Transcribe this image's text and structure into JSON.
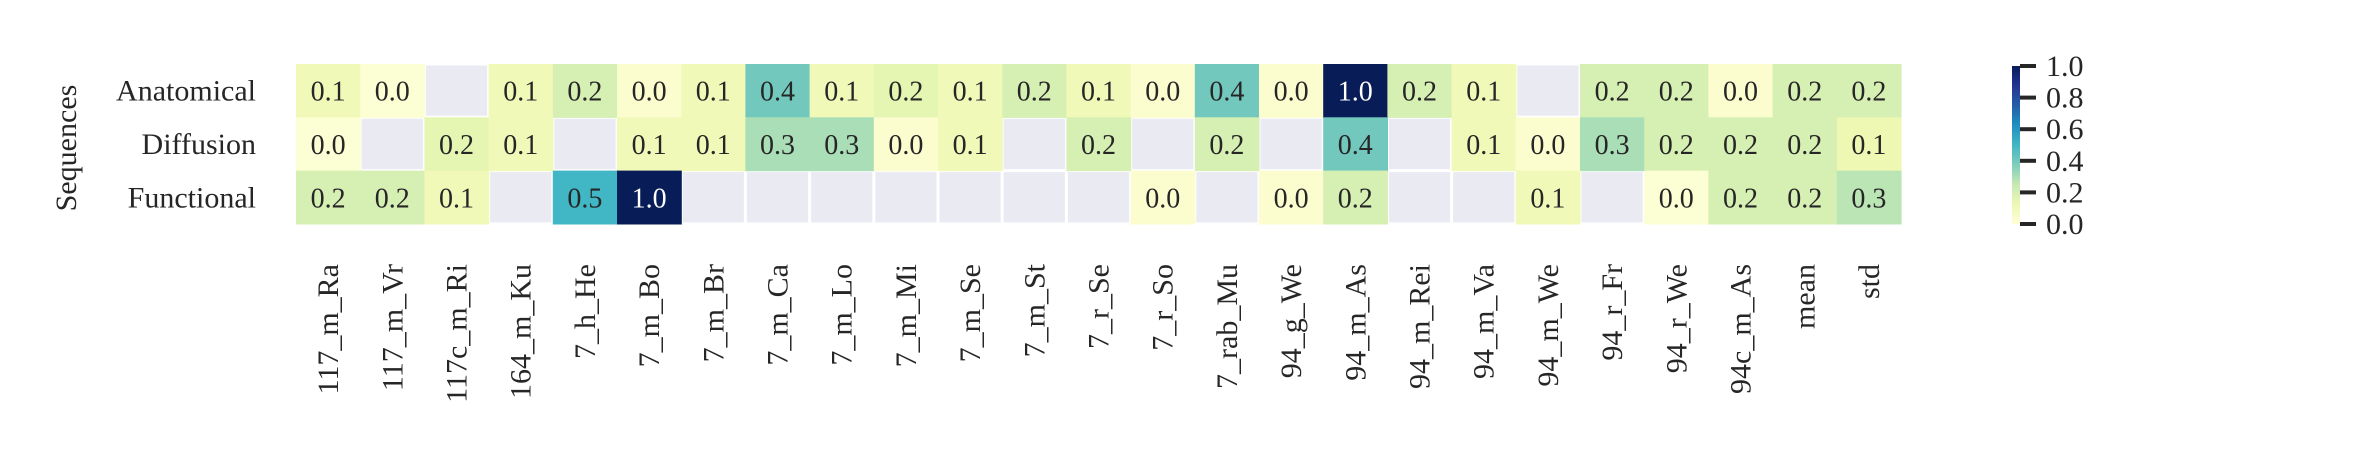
{
  "chart_data": {
    "type": "heatmap",
    "ylabel": "Sequences",
    "xlabel": "",
    "rows": [
      "Anatomical",
      "Diffusion",
      "Functional"
    ],
    "columns": [
      "117_m_Ra",
      "117_m_Vr",
      "117c_m_Ri",
      "164_m_Ku",
      "7_h_He",
      "7_m_Bo",
      "7_m_Br",
      "7_m_Ca",
      "7_m_Lo",
      "7_m_Mi",
      "7_m_Se",
      "7_m_St",
      "7_r_Se",
      "7_r_So",
      "7_rab_Mu",
      "94_g_We",
      "94_m_As",
      "94_m_Rei",
      "94_m_Va",
      "94_m_We",
      "94_r_Fr",
      "94_r_We",
      "94c_m_As",
      "mean",
      "std"
    ],
    "values": [
      [
        0.1,
        0.0,
        null,
        0.1,
        0.2,
        0.0,
        0.1,
        0.4,
        0.1,
        0.2,
        0.1,
        0.2,
        0.1,
        0.0,
        0.4,
        0.0,
        1.0,
        0.2,
        0.1,
        null,
        0.2,
        0.2,
        0.0,
        0.2,
        0.2
      ],
      [
        0.0,
        null,
        0.2,
        0.1,
        null,
        0.1,
        0.1,
        0.3,
        0.3,
        0.0,
        0.1,
        null,
        0.2,
        null,
        0.2,
        null,
        0.4,
        null,
        0.1,
        0.0,
        0.3,
        0.2,
        0.2,
        0.2,
        0.1
      ],
      [
        0.2,
        0.2,
        0.1,
        null,
        0.5,
        1.0,
        null,
        null,
        null,
        null,
        null,
        null,
        null,
        0.0,
        null,
        0.0,
        0.2,
        null,
        null,
        0.1,
        null,
        0.0,
        0.2,
        0.2,
        0.3
      ]
    ],
    "fill_values": [
      [
        0.1,
        0.02,
        null,
        0.1,
        0.2,
        0.03,
        0.1,
        0.4,
        0.1,
        0.15,
        0.1,
        0.2,
        0.1,
        0.03,
        0.4,
        0.03,
        1.0,
        0.2,
        0.1,
        null,
        0.2,
        0.2,
        0.03,
        0.2,
        0.2
      ],
      [
        0.02,
        null,
        0.15,
        0.1,
        null,
        0.1,
        0.1,
        0.3,
        0.3,
        0.03,
        0.1,
        null,
        0.2,
        null,
        0.2,
        null,
        0.4,
        null,
        0.1,
        0.03,
        0.3,
        0.2,
        0.2,
        0.2,
        0.12
      ],
      [
        0.2,
        0.2,
        0.1,
        null,
        0.5,
        1.0,
        null,
        null,
        null,
        null,
        null,
        null,
        null,
        0.03,
        null,
        0.03,
        0.2,
        null,
        null,
        0.1,
        null,
        0.02,
        0.2,
        0.2,
        0.27
      ]
    ],
    "colorbar": {
      "ticks": [
        "0.0",
        "0.2",
        "0.4",
        "0.6",
        "0.8",
        "1.0"
      ],
      "range": [
        0,
        1
      ],
      "colormap": "YlGnBu"
    },
    "missing_color": "#eaeaf2",
    "grid": true,
    "legend": "colorbar at right"
  }
}
